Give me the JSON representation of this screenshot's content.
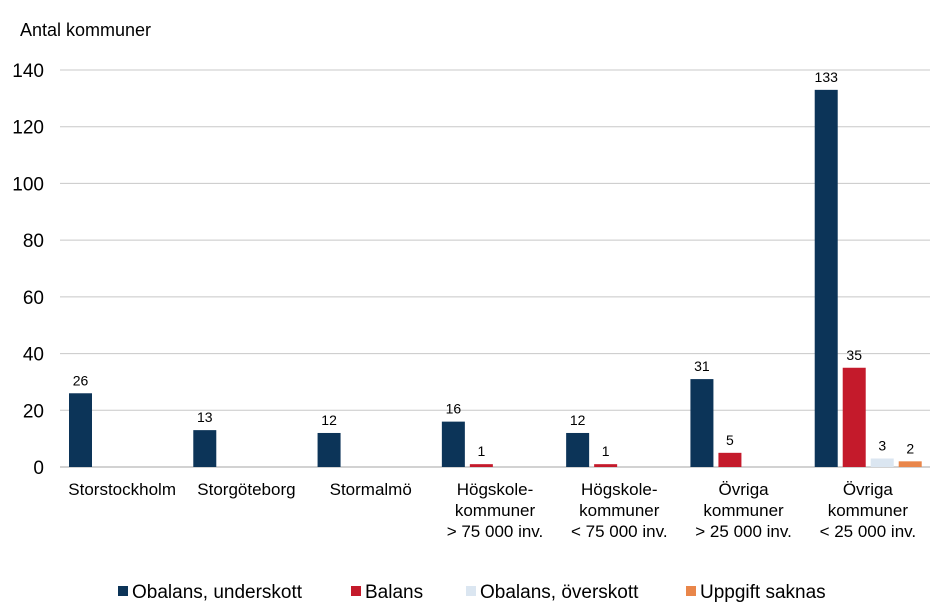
{
  "chart_data": {
    "type": "bar",
    "ylabel": "Antal kommuner",
    "ylim": [
      0,
      140
    ],
    "yticks": [
      "0",
      "20",
      "40",
      "60",
      "80",
      "100",
      "120",
      "140"
    ],
    "grid": true,
    "legend_position": "bottom",
    "categories": [
      [
        "Storstockholm"
      ],
      [
        "Storgöteborg"
      ],
      [
        "Stormalmö"
      ],
      [
        "Högskole-",
        "kommuner",
        "> 75 000 inv."
      ],
      [
        "Högskole-",
        "kommuner",
        "< 75 000 inv."
      ],
      [
        "Övriga",
        "kommuner",
        "> 25 000 inv."
      ],
      [
        "Övriga",
        "kommuner",
        "< 25 000 inv."
      ]
    ],
    "series": [
      {
        "name": "Obalans, underskott",
        "color": "#0c3458",
        "values": [
          26,
          13,
          12,
          16,
          12,
          31,
          133
        ]
      },
      {
        "name": "Balans",
        "color": "#c41a2b",
        "values": [
          null,
          null,
          null,
          1,
          1,
          5,
          35
        ]
      },
      {
        "name": "Obalans, överskott",
        "color": "#dbe6f1",
        "values": [
          null,
          null,
          null,
          null,
          null,
          null,
          3
        ]
      },
      {
        "name": "Uppgift saknas",
        "color": "#e9864a",
        "values": [
          null,
          null,
          null,
          null,
          null,
          null,
          2
        ]
      }
    ]
  }
}
